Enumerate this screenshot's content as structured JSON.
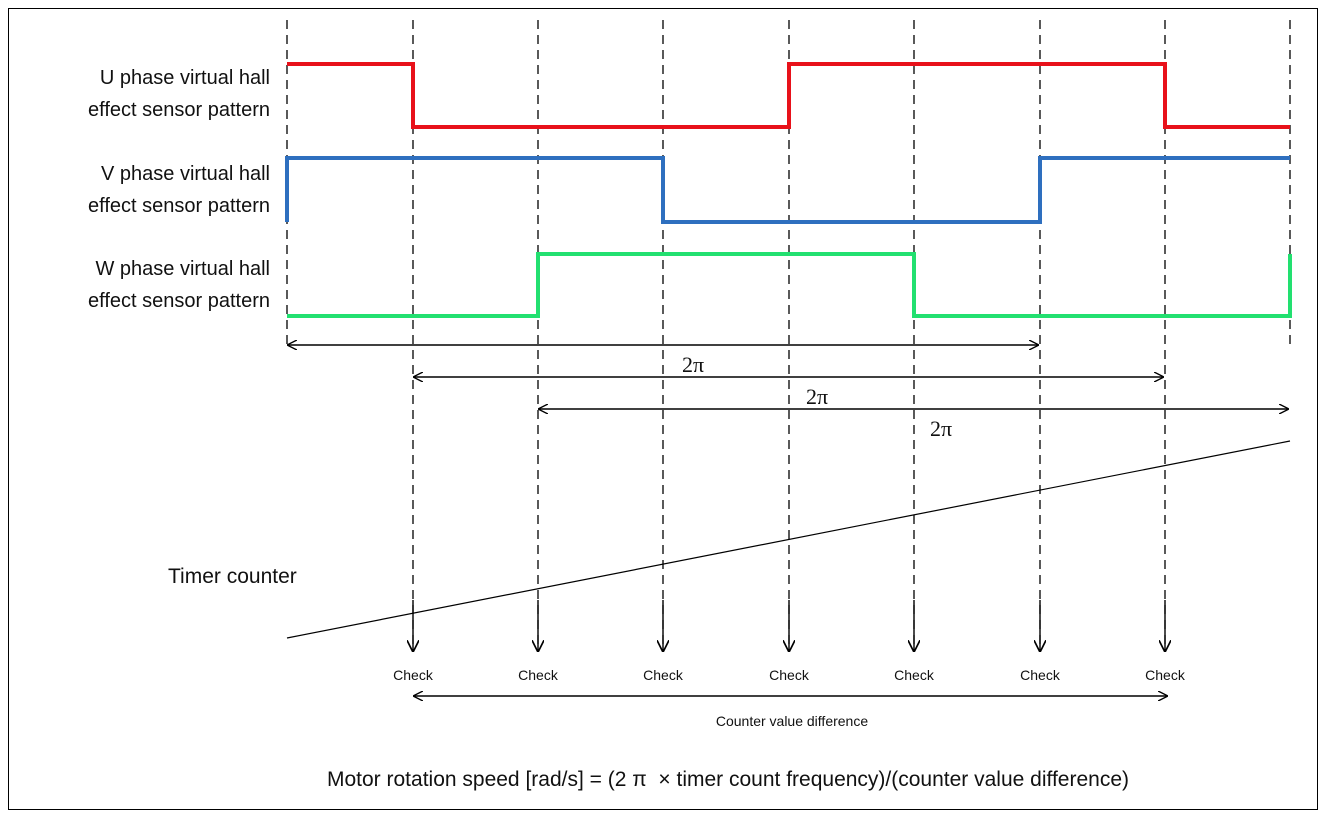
{
  "signals": [
    {
      "line1": "U phase virtual hall",
      "line2": "effect sensor pattern",
      "color": "#e8111a"
    },
    {
      "line1": "V phase virtual hall",
      "line2": "effect sensor pattern",
      "color": "#2e6fbf"
    },
    {
      "line1": "W phase virtual hall",
      "line2": "effect sensor pattern",
      "color": "#22e070"
    }
  ],
  "period_label": "2π",
  "timer_label": "Timer counter",
  "check_label": "Check",
  "difference_label": "Counter value difference",
  "formula": "Motor rotation speed [rad/s] = (2 π  × timer count frequency)/(counter value difference)"
}
